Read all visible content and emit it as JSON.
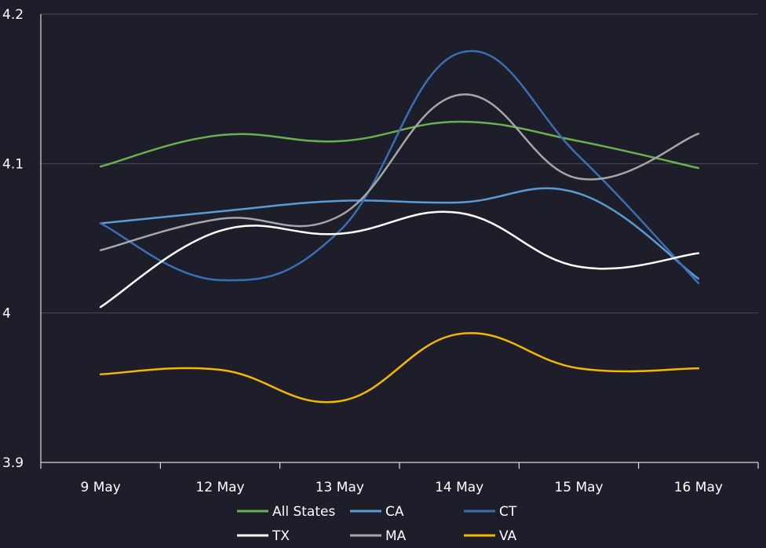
{
  "chart_data": {
    "type": "line",
    "categories": [
      "9 May",
      "12 May",
      "13 May",
      "14 May",
      "15 May",
      "16 May"
    ],
    "ylim": [
      3.9,
      4.2
    ],
    "yticks": [
      "3.9",
      "4",
      "4.1",
      "4.2"
    ],
    "grid": true,
    "legend_position": "bottom",
    "series": [
      {
        "name": "All States",
        "color": "#6ab04c",
        "values": [
          4.098,
          4.119,
          4.115,
          4.128,
          4.115,
          4.097
        ]
      },
      {
        "name": "CA",
        "color": "#5b9bd5",
        "values": [
          4.06,
          4.068,
          4.075,
          4.074,
          4.08,
          4.023
        ]
      },
      {
        "name": "CT",
        "color": "#3a6eb5",
        "values": [
          4.06,
          4.022,
          4.055,
          4.174,
          4.105,
          4.02
        ]
      },
      {
        "name": "TX",
        "color": "#ffffff",
        "values": [
          4.004,
          4.055,
          4.053,
          4.067,
          4.031,
          4.04
        ]
      },
      {
        "name": "MA",
        "color": "#a6a6a6",
        "values": [
          4.042,
          4.063,
          4.065,
          4.146,
          4.09,
          4.12
        ]
      },
      {
        "name": "VA",
        "color": "#f5b800",
        "values": [
          3.959,
          3.962,
          3.941,
          3.986,
          3.963,
          3.963
        ]
      }
    ]
  }
}
